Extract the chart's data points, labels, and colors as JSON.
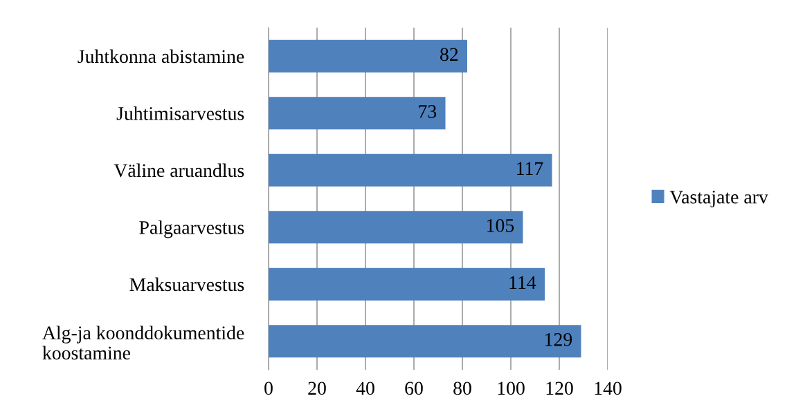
{
  "chart_data": {
    "type": "bar",
    "orientation": "horizontal",
    "categories": [
      "Juhtkonna abistamine",
      "Juhtimisarvestus",
      "Väline aruandlus",
      "Palgaarvestus",
      "Maksuarvestus",
      "Alg-ja koonddokumentide koostamine"
    ],
    "series": [
      {
        "name": "Vastajate arv",
        "color": "#4f81bd",
        "values": [
          82,
          73,
          117,
          105,
          114,
          129
        ]
      }
    ],
    "xlim": [
      0,
      140
    ],
    "xticks": [
      0,
      20,
      40,
      60,
      80,
      100,
      120,
      140
    ],
    "grid": "x",
    "legend": "right",
    "data_labels": true
  }
}
